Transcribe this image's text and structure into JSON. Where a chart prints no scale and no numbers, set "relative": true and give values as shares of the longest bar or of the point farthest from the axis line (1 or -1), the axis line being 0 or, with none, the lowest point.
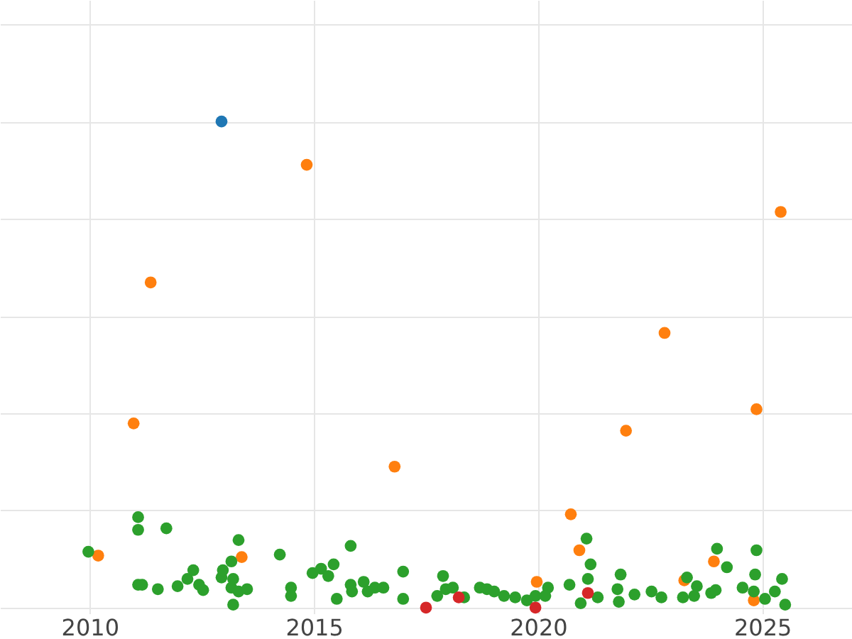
{
  "chart_data": {
    "type": "scatter",
    "relative": true,
    "grid": true,
    "marker": "circle",
    "tick_labels": "x",
    "xlim": [
      2008,
      2027
    ],
    "xticks": [
      2010,
      2015,
      2020,
      2025
    ],
    "series": [
      {
        "color": "#1f77b4",
        "x": [
          2012.94
        ],
        "values": [
          1
        ]
      },
      {
        "color": "#ff7f0e",
        "x": [
          2010.19,
          2013.39,
          2014.84,
          2011.36,
          2010.98,
          2016.8,
          2019.97,
          2020.73,
          2020.92,
          2021.96,
          2022.82,
          2023.26,
          2023.92,
          2024.87,
          2024.81,
          2025.41
        ],
        "values": [
          0.107,
          0.104,
          0.911,
          0.669,
          0.379,
          0.29,
          0.053,
          0.192,
          0.118,
          0.364,
          0.565,
          0.056,
          0.095,
          0.408,
          0.015,
          0.814
        ]
      },
      {
        "color": "#2ca02c",
        "x": [
          2009.97,
          2011.08,
          2011.08,
          2011.71,
          2011.08,
          2011.17,
          2011.52,
          2011.96,
          2012.18,
          2012.31,
          2012.44,
          2012.53,
          2012.94,
          2012.97,
          2013.16,
          2013.2,
          2013.32,
          2013.16,
          2013.32,
          2013.51,
          2013.2,
          2014.24,
          2014.49,
          2014.49,
          2014.97,
          2015.16,
          2015.32,
          2015.44,
          2015.51,
          2015.82,
          2015.82,
          2015.85,
          2016.11,
          2016.2,
          2016.36,
          2016.55,
          2016.99,
          2016.99,
          2017.88,
          2017.75,
          2017.94,
          2018.1,
          2018.35,
          2018.7,
          2018.86,
          2019.02,
          2019.24,
          2019.49,
          2019.75,
          2019.94,
          2020.22,
          2020.16,
          2020.7,
          2021.08,
          2021.17,
          2021.11,
          2020.95,
          2021.33,
          2021.77,
          2021.84,
          2021.8,
          2022.15,
          2022.53,
          2022.75,
          2023.23,
          2023.32,
          2023.54,
          2023.48,
          2023.86,
          2023.99,
          2024.21,
          2023.96,
          2024.56,
          2024.84,
          2024.87,
          2024.81,
          2025.06,
          2025.28,
          2025.44,
          2025.51
        ],
        "values": [
          0.115,
          0.186,
          0.16,
          0.163,
          0.047,
          0.047,
          0.038,
          0.044,
          0.059,
          0.077,
          0.047,
          0.036,
          0.062,
          0.077,
          0.095,
          0.059,
          0.139,
          0.041,
          0.033,
          0.038,
          0.006,
          0.109,
          0.041,
          0.024,
          0.071,
          0.08,
          0.065,
          0.089,
          0.018,
          0.127,
          0.047,
          0.033,
          0.053,
          0.033,
          0.041,
          0.041,
          0.074,
          0.018,
          0.065,
          0.024,
          0.038,
          0.041,
          0.021,
          0.041,
          0.038,
          0.033,
          0.024,
          0.021,
          0.015,
          0.024,
          0.041,
          0.024,
          0.047,
          0.142,
          0.089,
          0.059,
          0.009,
          0.021,
          0.038,
          0.068,
          0.012,
          0.027,
          0.033,
          0.021,
          0.021,
          0.062,
          0.044,
          0.024,
          0.03,
          0.121,
          0.083,
          0.036,
          0.041,
          0.068,
          0.118,
          0.033,
          0.018,
          0.033,
          0.059,
          0.006
        ]
      },
      {
        "color": "#d62728",
        "x": [
          2017.5,
          2018.23,
          2019.94,
          2021.11
        ],
        "values": [
          0,
          0.021,
          0,
          0.03
        ]
      }
    ]
  }
}
